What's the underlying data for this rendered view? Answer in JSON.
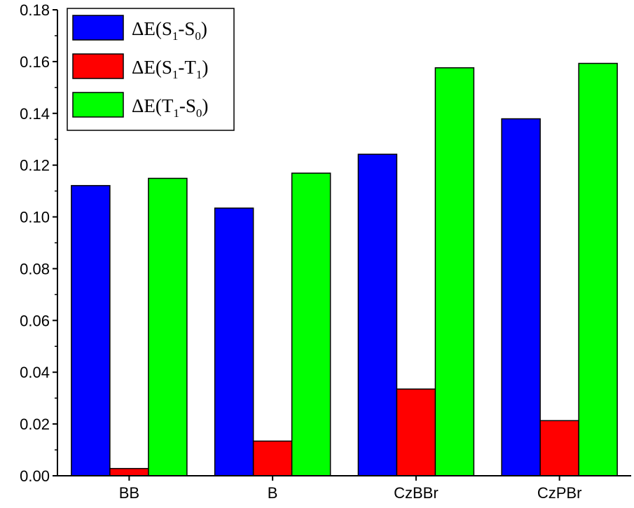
{
  "chart_data": {
    "type": "bar",
    "categories": [
      "BB",
      "B",
      "CzBBr",
      "CzPBr"
    ],
    "series": [
      {
        "name": "ΔE(S1-S0)",
        "label_parts": [
          [
            "ΔE(S",
            ""
          ],
          [
            "1",
            "sub"
          ],
          [
            "-S",
            ""
          ],
          [
            "0",
            "sub"
          ],
          [
            ")",
            ""
          ]
        ],
        "color": "#0000ff",
        "values": [
          0.1121,
          0.1034,
          0.1242,
          0.1379
        ]
      },
      {
        "name": "ΔE(S1-T1)",
        "label_parts": [
          [
            "ΔE(S",
            ""
          ],
          [
            "1",
            "sub"
          ],
          [
            "-T",
            ""
          ],
          [
            "1",
            "sub"
          ],
          [
            ")",
            ""
          ]
        ],
        "color": "#ff0000",
        "values": [
          0.0028,
          0.0134,
          0.0335,
          0.0213
        ]
      },
      {
        "name": "ΔE(T1-S0)",
        "label_parts": [
          [
            "ΔE(T",
            ""
          ],
          [
            "1",
            "sub"
          ],
          [
            "-S",
            ""
          ],
          [
            "0",
            "sub"
          ],
          [
            ")",
            ""
          ]
        ],
        "color": "#00ff00",
        "values": [
          0.1149,
          0.1169,
          0.1576,
          0.1593
        ]
      }
    ],
    "y_ticks": [
      "0.00",
      "0.02",
      "0.04",
      "0.06",
      "0.08",
      "0.10",
      "0.12",
      "0.14",
      "0.16",
      "0.18"
    ],
    "ylim": [
      0,
      0.18
    ],
    "title": "",
    "xlabel": "",
    "ylabel": "",
    "grid": false,
    "legend_position": "top-left"
  }
}
